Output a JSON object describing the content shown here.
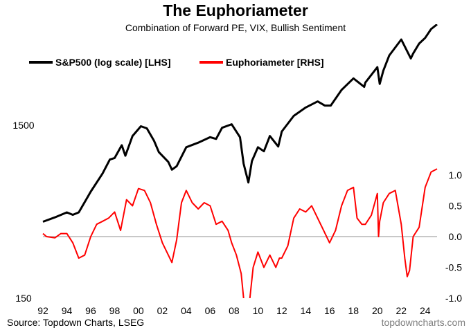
{
  "chart_data": {
    "type": "line",
    "title": "The Euphoriameter",
    "subtitle": "Combination of Forward PE, VIX, Bullish Sentiment",
    "source": "Source: Topdown Charts, LSEG",
    "website": "topdowncharts.com",
    "x_ticks": [
      "92",
      "94",
      "96",
      "98",
      "00",
      "02",
      "04",
      "06",
      "08",
      "10",
      "12",
      "14",
      "16",
      "18",
      "20",
      "22",
      "24"
    ],
    "xlim": [
      1992,
      2025
    ],
    "left_axis": {
      "scale": "log",
      "ylim": [
        150,
        5500
      ],
      "ticks": [
        150,
        1500
      ],
      "tick_labels": [
        "150",
        "1500"
      ]
    },
    "right_axis": {
      "ylim": [
        -1.0,
        1.1
      ],
      "ticks": [
        -1.0,
        -0.5,
        0.0,
        0.5,
        1.0
      ],
      "tick_labels": [
        "-1.0",
        "-0.5",
        "0.0",
        "0.5",
        "1.0"
      ]
    },
    "zero_line_color": "#a6a6a6",
    "series": [
      {
        "name": "S&P500 (log scale) [LHS]",
        "axis": "left",
        "color": "#000000",
        "x": [
          1992.0,
          1993.0,
          1994.0,
          1994.5,
          1995.0,
          1996.0,
          1997.0,
          1997.6,
          1998.0,
          1998.6,
          1998.9,
          1999.5,
          2000.2,
          2000.7,
          2001.3,
          2001.7,
          2002.5,
          2002.8,
          2003.2,
          2004.0,
          2005.0,
          2006.0,
          2006.5,
          2007.0,
          2007.8,
          2008.5,
          2008.8,
          2009.2,
          2009.5,
          2010.0,
          2010.5,
          2011.0,
          2011.7,
          2012.0,
          2013.0,
          2014.0,
          2015.0,
          2015.6,
          2016.1,
          2017.0,
          2018.0,
          2018.9,
          2019.0,
          2020.0,
          2020.2,
          2020.5,
          2021.0,
          2022.0,
          2022.8,
          2023.0,
          2023.5,
          2024.0,
          2024.5,
          2025.0
        ],
        "y": [
          415,
          440,
          470,
          455,
          470,
          620,
          790,
          950,
          970,
          1150,
          1000,
          1300,
          1480,
          1440,
          1220,
          1050,
          920,
          830,
          870,
          1120,
          1190,
          1280,
          1250,
          1450,
          1520,
          1280,
          900,
          700,
          930,
          1120,
          1060,
          1300,
          1130,
          1380,
          1700,
          1900,
          2060,
          1950,
          1950,
          2400,
          2800,
          2500,
          2650,
          3250,
          2600,
          3100,
          3800,
          4700,
          3650,
          3900,
          4450,
          4800,
          5400,
          5750
        ]
      },
      {
        "name": "Euphoriameter [RHS]",
        "axis": "right",
        "color": "#ff0000",
        "x": [
          1992.0,
          1992.3,
          1993.0,
          1993.5,
          1994.0,
          1994.5,
          1995.0,
          1995.5,
          1996.0,
          1996.5,
          1997.0,
          1997.5,
          1998.0,
          1998.5,
          1999.0,
          1999.5,
          2000.0,
          2000.5,
          2001.0,
          2001.5,
          2002.0,
          2002.5,
          2002.8,
          2003.2,
          2003.6,
          2004.0,
          2004.5,
          2005.0,
          2005.5,
          2006.0,
          2006.5,
          2007.0,
          2007.5,
          2007.8,
          2008.2,
          2008.6,
          2008.8,
          2009.0,
          2009.3,
          2009.6,
          2010.0,
          2010.5,
          2011.0,
          2011.5,
          2011.8,
          2012.0,
          2012.5,
          2013.0,
          2013.5,
          2014.0,
          2014.5,
          2015.0,
          2015.5,
          2016.0,
          2016.5,
          2017.0,
          2017.5,
          2018.0,
          2018.3,
          2018.7,
          2019.0,
          2019.5,
          2020.0,
          2020.1,
          2020.2,
          2020.5,
          2021.0,
          2021.5,
          2022.0,
          2022.3,
          2022.5,
          2022.7,
          2023.0,
          2023.5,
          2024.0,
          2024.5,
          2025.0
        ],
        "y": [
          0.05,
          0.0,
          -0.02,
          0.05,
          0.05,
          -0.1,
          -0.35,
          -0.3,
          0.0,
          0.2,
          0.25,
          0.3,
          0.4,
          0.1,
          0.6,
          0.5,
          0.78,
          0.75,
          0.55,
          0.2,
          -0.1,
          -0.3,
          -0.42,
          -0.05,
          0.55,
          0.75,
          0.55,
          0.45,
          0.55,
          0.5,
          0.2,
          0.25,
          0.1,
          -0.1,
          -0.3,
          -0.6,
          -1.0,
          -1.15,
          -1.05,
          -0.5,
          -0.25,
          -0.5,
          -0.3,
          -0.5,
          -0.35,
          -0.35,
          -0.15,
          0.3,
          0.45,
          0.4,
          0.5,
          0.3,
          0.1,
          -0.1,
          0.1,
          0.5,
          0.75,
          0.8,
          0.3,
          0.2,
          0.2,
          0.35,
          0.7,
          0.0,
          0.25,
          0.55,
          0.7,
          0.75,
          0.2,
          -0.35,
          -0.65,
          -0.55,
          0.0,
          0.15,
          0.8,
          1.05,
          1.1
        ]
      }
    ]
  }
}
